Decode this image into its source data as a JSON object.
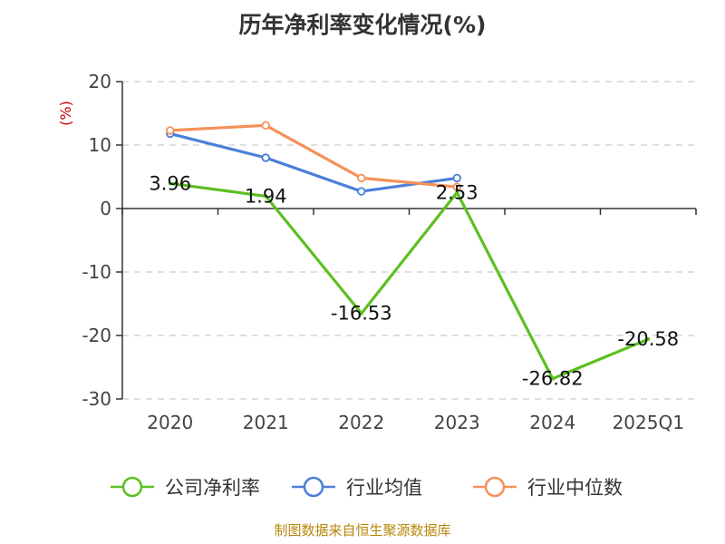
{
  "chart_data": {
    "type": "line",
    "title": "历年净利率变化情况(%)",
    "ylabel": "(%)",
    "categories": [
      "2020",
      "2021",
      "2022",
      "2023",
      "2024",
      "2025Q1"
    ],
    "yticks": [
      20,
      10,
      0,
      -10,
      -20,
      -30
    ],
    "ylim": [
      -30,
      20
    ],
    "grid": true,
    "legend_position": "bottom",
    "series": [
      {
        "name": "公司净利率",
        "color": "#5cc021",
        "values": [
          3.96,
          1.94,
          -16.53,
          2.53,
          -26.82,
          -20.58
        ],
        "labels": [
          "3.96",
          "1.94",
          "-16.53",
          "2.53",
          "-26.82",
          "-20.58"
        ]
      },
      {
        "name": "行业均值",
        "color": "#4b7fd8",
        "values": [
          11.8,
          8.0,
          2.7,
          4.8,
          null,
          null
        ]
      },
      {
        "name": "行业中位数",
        "color": "#f5915a",
        "values": [
          12.3,
          13.1,
          4.8,
          3.4,
          null,
          null
        ]
      }
    ],
    "source": "制图数据来自恒生聚源数据库"
  }
}
